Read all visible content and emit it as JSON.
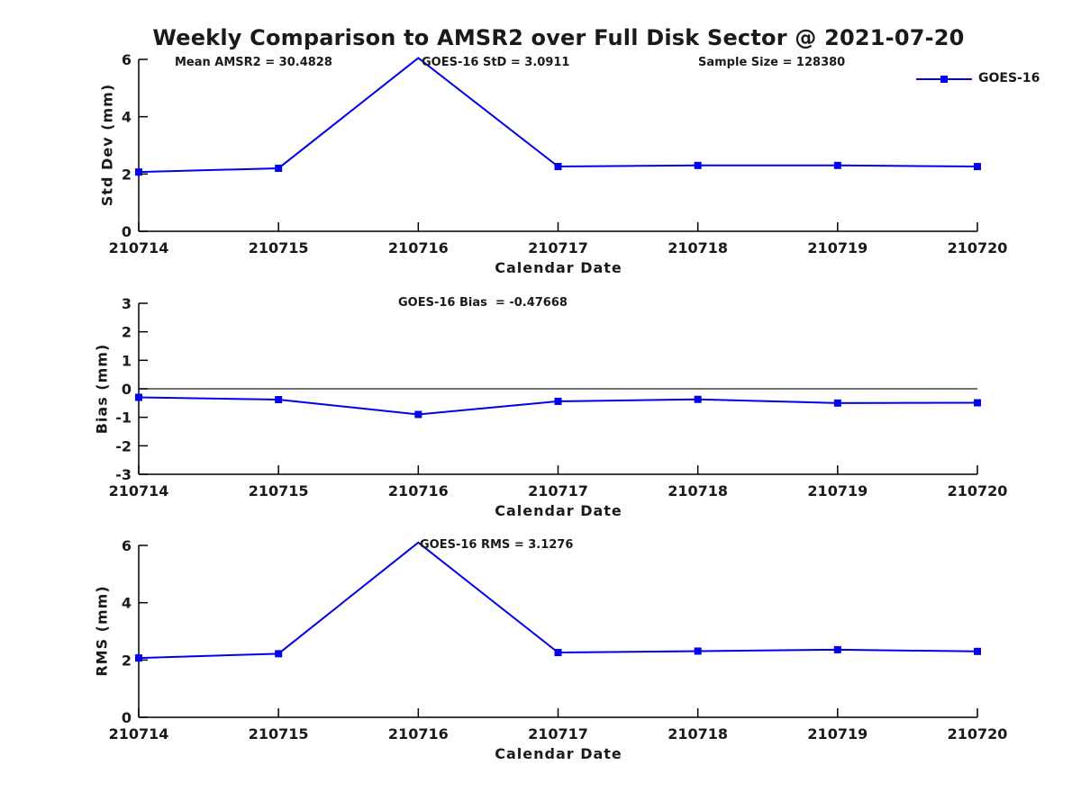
{
  "title": "Weekly Comparison to AMSR2 over Full Disk Sector @ 2021-07-20",
  "x_label": "Calendar Date",
  "legend": {
    "label": "GOES-16"
  },
  "colors": {
    "line": "#0000ee",
    "axis": "#000000",
    "zero_line": "#1a1a1a",
    "text": "#1a1a1a",
    "background": "#ffffff"
  },
  "chart_data": [
    {
      "type": "line",
      "name": "std-dev",
      "series": [
        {
          "name": "GOES-16",
          "values": [
            2.07,
            2.2,
            6.05,
            2.26,
            2.3,
            2.3,
            2.26
          ]
        }
      ],
      "categories": [
        "210714",
        "210715",
        "210716",
        "210717",
        "210718",
        "210719",
        "210720"
      ],
      "xlabel": "Calendar Date",
      "ylabel": "Std Dev (mm)",
      "ylim": [
        0,
        6
      ],
      "yticks": [
        0,
        2,
        4,
        6
      ],
      "grid": false,
      "legend_position": "upper-right-outside",
      "zero_line": false,
      "annotations": [
        "Mean AMSR2 = 30.4828",
        "GOES-16 StD = 3.0911",
        "Sample Size = 128380"
      ]
    },
    {
      "type": "line",
      "name": "bias",
      "series": [
        {
          "name": "GOES-16",
          "values": [
            -0.3,
            -0.38,
            -0.9,
            -0.44,
            -0.37,
            -0.5,
            -0.49
          ]
        }
      ],
      "categories": [
        "210714",
        "210715",
        "210716",
        "210717",
        "210718",
        "210719",
        "210720"
      ],
      "xlabel": "Calendar Date",
      "ylabel": "Bias (mm)",
      "ylim": [
        -3,
        3
      ],
      "yticks": [
        -3,
        -2,
        -1,
        0,
        1,
        2,
        3
      ],
      "grid": false,
      "zero_line": true,
      "annotations": [
        "GOES-16 Bias  = -0.47668"
      ]
    },
    {
      "type": "line",
      "name": "rms",
      "series": [
        {
          "name": "GOES-16",
          "values": [
            2.07,
            2.22,
            6.1,
            2.26,
            2.31,
            2.36,
            2.3
          ]
        }
      ],
      "categories": [
        "210714",
        "210715",
        "210716",
        "210717",
        "210718",
        "210719",
        "210720"
      ],
      "xlabel": "Calendar Date",
      "ylabel": "RMS (mm)",
      "ylim": [
        0,
        6
      ],
      "yticks": [
        0,
        2,
        4,
        6
      ],
      "grid": false,
      "zero_line": false,
      "annotations": [
        "GOES-16 RMS = 3.1276"
      ]
    }
  ]
}
